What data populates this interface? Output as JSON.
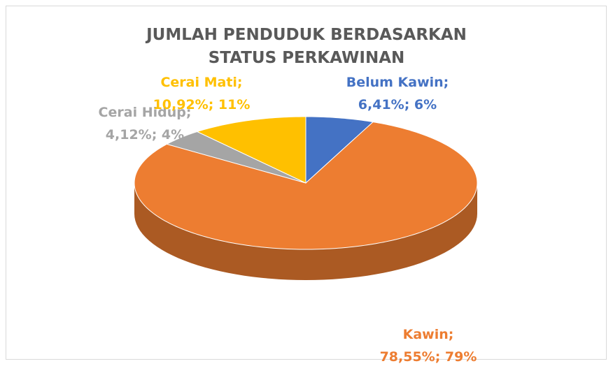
{
  "chart_data": {
    "type": "pie3d",
    "title": "JUMLAH PENDUDUK BERDASARKAN STATUS PERKAWINAN",
    "categories": [
      "Belum Kawin;",
      "Kawin;",
      "Cerai Hidup;",
      "Cerai Mati;"
    ],
    "values": [
      6.41,
      78.55,
      4.12,
      10.92
    ],
    "value_labels": [
      "6,41%; 6%",
      "78,55%; 79%",
      "4,12%; 4%",
      "10,92%; 11%"
    ],
    "colors": [
      "#4472c4",
      "#ed7d31",
      "#a5a5a5",
      "#ffc000"
    ]
  }
}
